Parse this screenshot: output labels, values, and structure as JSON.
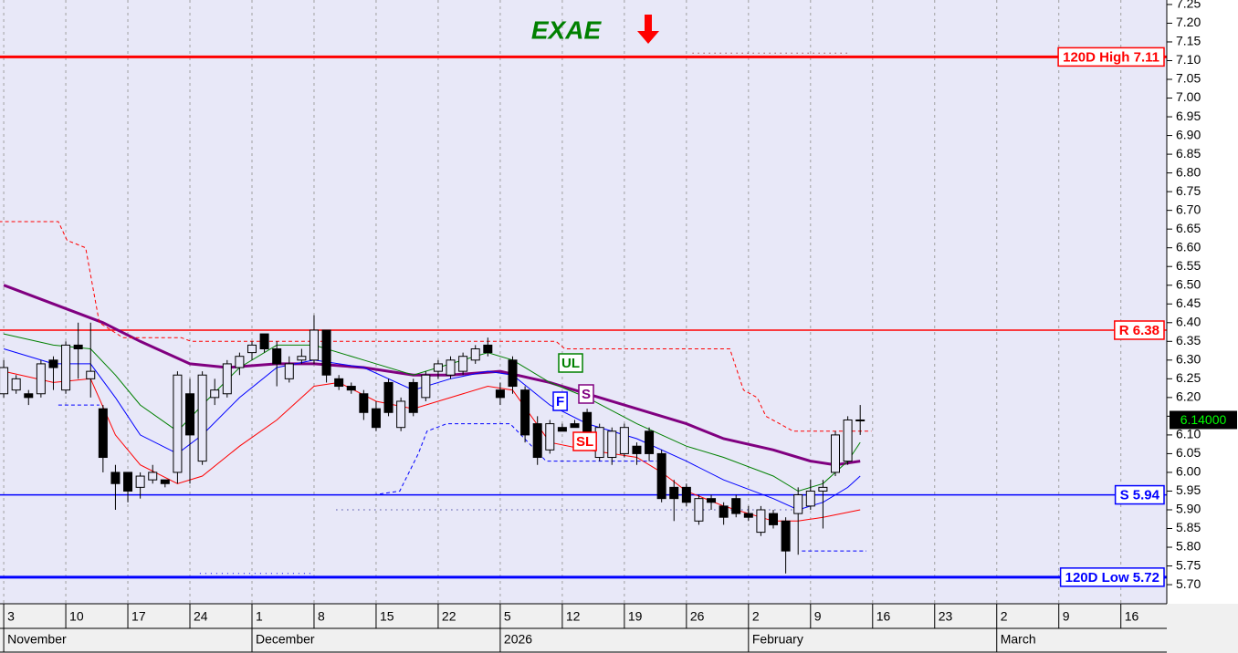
{
  "chart_data": {
    "type": "candlestick",
    "title": "EXAE",
    "title_color": "#008000",
    "xlim": [
      -0.3,
      93.7
    ],
    "ylim": [
      5.649,
      7.262
    ],
    "xticks": [
      {
        "value": 0,
        "label": "3"
      },
      {
        "value": 5,
        "label": "10"
      },
      {
        "value": 10,
        "label": "17"
      },
      {
        "value": 15,
        "label": "24"
      },
      {
        "value": 20,
        "label": "1"
      },
      {
        "value": 25,
        "label": "8"
      },
      {
        "value": 30,
        "label": "15"
      },
      {
        "value": 35,
        "label": "22"
      },
      {
        "value": 40,
        "label": "5"
      },
      {
        "value": 45,
        "label": "12"
      },
      {
        "value": 50,
        "label": "19"
      },
      {
        "value": 55,
        "label": "26"
      },
      {
        "value": 60,
        "label": "2"
      },
      {
        "value": 65,
        "label": "9"
      },
      {
        "value": 70,
        "label": "16"
      },
      {
        "value": 75,
        "label": "23"
      },
      {
        "value": 80,
        "label": "2"
      },
      {
        "value": 85,
        "label": "9"
      },
      {
        "value": 90,
        "label": "16"
      }
    ],
    "months": [
      {
        "value": 0,
        "label": "November"
      },
      {
        "value": 20,
        "label": "December"
      },
      {
        "value": 40,
        "label": "2026"
      },
      {
        "value": 60,
        "label": "February"
      },
      {
        "value": 80,
        "label": "March"
      }
    ],
    "yticks": [
      {
        "value": 5.7,
        "label": "5.70"
      },
      5.75,
      {
        "value": 5.8,
        "label": "5.80"
      },
      5.85,
      {
        "value": 5.9,
        "label": "5.90"
      },
      5.95,
      {
        "value": 6,
        "label": "6.00"
      },
      6.05,
      {
        "value": 6.1,
        "label": "6.10"
      },
      6.15,
      {
        "value": 6.2,
        "label": "6.20"
      },
      6.25,
      {
        "value": 6.3,
        "label": "6.30"
      },
      6.35,
      {
        "value": 6.4,
        "label": "6.40"
      },
      6.45,
      {
        "value": 6.5,
        "label": "6.50"
      },
      6.55,
      {
        "value": 6.6,
        "label": "6.60"
      },
      6.65,
      {
        "value": 6.7,
        "label": "6.70"
      },
      6.75,
      {
        "value": 6.8,
        "label": "6.80"
      },
      6.85,
      {
        "value": 6.9,
        "label": "6.90"
      },
      6.95,
      {
        "value": 7,
        "label": "7.00"
      },
      7.05,
      {
        "value": 7.1,
        "label": "7.10"
      },
      7.15,
      {
        "value": 7.2,
        "label": "7.20"
      },
      7.25
    ],
    "candles": {
      "open": [
        6.21,
        6.22,
        6.21,
        6.21,
        6.3,
        6.22,
        6.34,
        6.25,
        6.17,
        6.0,
        6.0,
        5.96,
        5.98,
        5.98,
        6.0,
        6.21,
        6.03,
        6.2,
        6.21,
        6.28,
        6.32,
        6.37,
        6.33,
        6.25,
        6.3,
        6.3,
        6.38,
        6.25,
        6.23,
        6.21,
        6.17,
        6.24,
        6.12,
        6.24,
        6.2,
        6.27,
        6.26,
        6.27,
        6.3,
        6.34,
        6.22,
        6.3,
        6.22,
        6.13,
        6.06,
        6.12,
        6.13,
        6.16,
        6.04,
        6.04,
        6.05,
        6.07,
        6.11,
        6.05,
        5.96,
        5.96,
        5.87,
        5.93,
        5.91,
        5.93,
        5.89,
        5.84,
        5.89,
        5.87,
        5.89,
        5.91,
        5.95,
        6.0,
        6.03,
        6.14
      ],
      "high": [
        6.3,
        6.26,
        6.22,
        6.3,
        6.31,
        6.35,
        6.4,
        6.4,
        6.18,
        6.02,
        6.0,
        6.0,
        6.02,
        5.98,
        6.27,
        6.25,
        6.27,
        6.25,
        6.3,
        6.32,
        6.35,
        6.37,
        6.35,
        6.31,
        6.33,
        6.42,
        6.38,
        6.26,
        6.24,
        6.22,
        6.19,
        6.25,
        6.2,
        6.25,
        6.27,
        6.3,
        6.31,
        6.32,
        6.34,
        6.36,
        6.24,
        6.31,
        6.23,
        6.15,
        6.14,
        6.13,
        6.14,
        6.17,
        6.13,
        6.12,
        6.13,
        6.08,
        6.12,
        6.06,
        5.98,
        5.97,
        5.94,
        5.94,
        5.92,
        5.94,
        5.91,
        5.91,
        5.9,
        5.88,
        5.96,
        5.98,
        5.98,
        6.11,
        6.15,
        6.18
      ],
      "low": [
        6.2,
        6.21,
        6.18,
        6.2,
        6.22,
        6.21,
        6.25,
        6.2,
        6.0,
        5.9,
        5.92,
        5.93,
        5.97,
        5.96,
        5.97,
        5.97,
        6.02,
        6.18,
        6.2,
        6.26,
        6.3,
        6.32,
        6.23,
        6.24,
        6.29,
        6.29,
        6.24,
        6.22,
        6.21,
        6.14,
        6.11,
        6.15,
        6.11,
        6.15,
        6.19,
        6.25,
        6.25,
        6.26,
        6.29,
        6.31,
        6.18,
        6.21,
        6.08,
        6.02,
        6.05,
        6.11,
        6.12,
        6.06,
        6.03,
        6.02,
        6.04,
        6.02,
        6.03,
        5.92,
        5.87,
        5.91,
        5.86,
        5.9,
        5.86,
        5.88,
        5.87,
        5.83,
        5.85,
        5.73,
        5.78,
        5.9,
        5.85,
        5.99,
        6.02,
        6.1
      ],
      "close": [
        6.28,
        6.25,
        6.2,
        6.29,
        6.28,
        6.34,
        6.33,
        6.27,
        6.04,
        5.97,
        5.95,
        5.99,
        6.0,
        5.97,
        6.26,
        6.1,
        6.26,
        6.22,
        6.29,
        6.31,
        6.34,
        6.33,
        6.29,
        6.29,
        6.31,
        6.38,
        6.26,
        6.23,
        6.22,
        6.16,
        6.12,
        6.16,
        6.19,
        6.16,
        6.26,
        6.29,
        6.3,
        6.31,
        6.33,
        6.32,
        6.2,
        6.23,
        6.1,
        6.04,
        6.13,
        6.11,
        6.12,
        6.07,
        6.12,
        6.11,
        6.12,
        6.05,
        6.05,
        5.93,
        5.93,
        5.92,
        5.93,
        5.92,
        5.88,
        5.89,
        5.88,
        5.9,
        5.86,
        5.79,
        5.94,
        5.95,
        5.96,
        6.1,
        6.14,
        6.14
      ]
    },
    "lines": [
      {
        "name": "S",
        "color": "#800080",
        "width": 3,
        "dash": "solid",
        "x": [
          0,
          8,
          11,
          15,
          18,
          22,
          25,
          29,
          33,
          36,
          40,
          44,
          47,
          51,
          55,
          58,
          62,
          65,
          67,
          69
        ],
        "values": [
          6.5,
          6.4,
          6.35,
          6.29,
          6.28,
          6.29,
          6.29,
          6.28,
          6.26,
          6.26,
          6.27,
          6.24,
          6.21,
          6.17,
          6.13,
          6.09,
          6.06,
          6.03,
          6.02,
          6.03
        ]
      },
      {
        "name": "UL",
        "color": "#008000",
        "width": 1,
        "dash": "solid",
        "x": [
          0,
          4,
          7,
          9,
          11,
          14,
          16,
          19,
          22,
          25,
          29,
          33,
          36,
          39,
          41,
          44,
          47,
          51,
          55,
          58,
          62,
          64,
          66,
          68,
          69
        ],
        "values": [
          6.37,
          6.34,
          6.33,
          6.26,
          6.18,
          6.11,
          6.18,
          6.28,
          6.34,
          6.34,
          6.3,
          6.26,
          6.29,
          6.32,
          6.3,
          6.24,
          6.2,
          6.13,
          6.07,
          6.04,
          5.99,
          5.95,
          5.97,
          6.03,
          6.08
        ]
      },
      {
        "name": "F",
        "color": "#0000ff",
        "width": 1,
        "dash": "solid",
        "x": [
          0,
          4,
          7,
          9,
          11,
          14,
          16,
          19,
          22,
          25,
          29,
          33,
          36,
          39,
          41,
          44,
          47,
          51,
          55,
          58,
          62,
          64,
          66,
          68,
          69
        ],
        "values": [
          6.33,
          6.29,
          6.29,
          6.2,
          6.1,
          6.05,
          6.1,
          6.2,
          6.28,
          6.3,
          6.28,
          6.22,
          6.25,
          6.27,
          6.26,
          6.18,
          6.13,
          6.09,
          6.03,
          5.98,
          5.93,
          5.9,
          5.92,
          5.96,
          5.99
        ]
      },
      {
        "name": "SL",
        "color": "#ff0000",
        "width": 1,
        "dash": "solid",
        "x": [
          0,
          4,
          7,
          9,
          11,
          14,
          16,
          19,
          22,
          25,
          27,
          30,
          33,
          36,
          39,
          41,
          44,
          47,
          51,
          53,
          55,
          58,
          62,
          64,
          66,
          69
        ],
        "values": [
          6.27,
          6.24,
          6.25,
          6.1,
          6.02,
          5.97,
          5.99,
          6.07,
          6.14,
          6.23,
          6.24,
          6.19,
          6.17,
          6.2,
          6.23,
          6.22,
          6.08,
          6.06,
          6.04,
          6.0,
          5.95,
          5.91,
          5.87,
          5.87,
          5.88,
          5.9
        ]
      },
      {
        "color": "#ff0000",
        "width": 1,
        "dash": "dashed",
        "x": [
          -0.4,
          4.4,
          5.1,
          6.6,
          7.7,
          9.6,
          14.3,
          15.1,
          44.5,
          45.2,
          58.5,
          59.6,
          60.7,
          61.4,
          63.6,
          69.9
        ],
        "values": [
          6.67,
          6.67,
          6.62,
          6.6,
          6.4,
          6.36,
          6.36,
          6.35,
          6.35,
          6.33,
          6.33,
          6.22,
          6.2,
          6.15,
          6.11,
          6.11
        ]
      },
      {
        "color": "#0000ff",
        "width": 1,
        "dash": "dashed",
        "x": [
          4.4,
          7.7,
          7.8,
          29.8,
          31.9,
          33.4,
          34.1,
          35.7,
          40.8,
          43.7,
          52.6,
          52.7,
          64.3,
          69.5
        ],
        "values": [
          6.18,
          6.18,
          null,
          5.94,
          5.95,
          6.05,
          6.11,
          6.13,
          6.13,
          6.03,
          6.03,
          null,
          5.79,
          5.79
        ]
      },
      {
        "color": "#000080",
        "width": 1,
        "dash": "dotted",
        "x": [
          26.8,
          64.4
        ],
        "values": [
          5.9,
          5.9
        ]
      },
      {
        "color": "#800000",
        "width": 1,
        "dash": "dotted",
        "x": [
          55.5,
          68
        ],
        "values": [
          7.12,
          7.12
        ]
      },
      {
        "color": "#0000ff",
        "width": 1,
        "dash": "dotted",
        "x": [
          15.8,
          25
        ],
        "values": [
          5.73,
          5.73
        ]
      }
    ],
    "levels": [
      {
        "value": 7.11,
        "label": "120D High 7.11",
        "color": "#ff0000",
        "width": 3
      },
      {
        "value": 6.38,
        "label": "R 6.38",
        "color": "#ff0000",
        "width": 1.5
      },
      {
        "value": 5.94,
        "label": "S 5.94",
        "color": "#0000ff",
        "width": 1.5
      },
      {
        "value": 5.72,
        "label": "120D Low 5.72",
        "color": "#0000ff",
        "width": 3
      }
    ],
    "last_price": {
      "value": 6.14,
      "label": "6.14000"
    }
  }
}
